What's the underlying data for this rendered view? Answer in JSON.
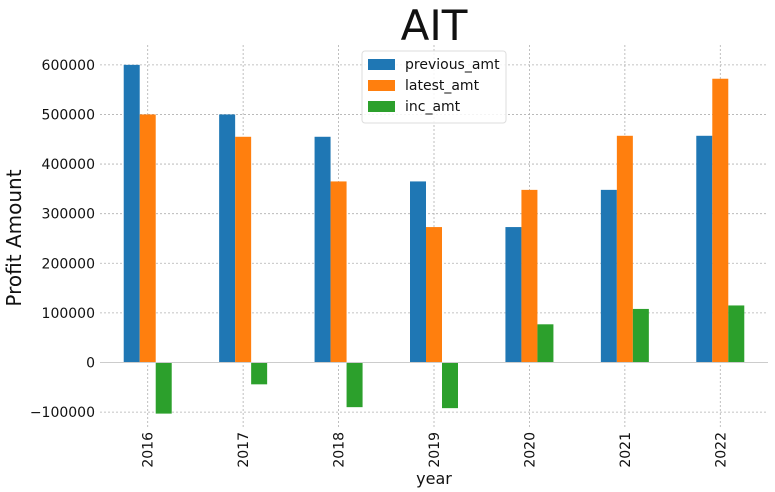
{
  "chart_data": {
    "type": "bar",
    "title": "AIT",
    "xlabel": "year",
    "ylabel": "Profit Amount",
    "categories": [
      "2016",
      "2017",
      "2018",
      "2019",
      "2020",
      "2021",
      "2022"
    ],
    "series": [
      {
        "name": "previous_amt",
        "color": "#1f77b4",
        "values": [
          600000,
          500000,
          455000,
          365000,
          273000,
          348000,
          457000
        ]
      },
      {
        "name": "latest_amt",
        "color": "#ff7f0e",
        "values": [
          500000,
          455000,
          365000,
          273000,
          348000,
          457000,
          572000
        ]
      },
      {
        "name": "inc_amt",
        "color": "#2ca02c",
        "values": [
          -103000,
          -44000,
          -90000,
          -92000,
          77000,
          108000,
          115000
        ]
      }
    ],
    "yticks": [
      -100000,
      0,
      100000,
      200000,
      300000,
      400000,
      500000,
      600000
    ],
    "ytick_labels": [
      "−100000",
      "0",
      "100000",
      "200000",
      "300000",
      "400000",
      "500000",
      "600000"
    ],
    "ylim": [
      -130000,
      640000
    ],
    "grid": true,
    "legend_position": "top-center"
  }
}
